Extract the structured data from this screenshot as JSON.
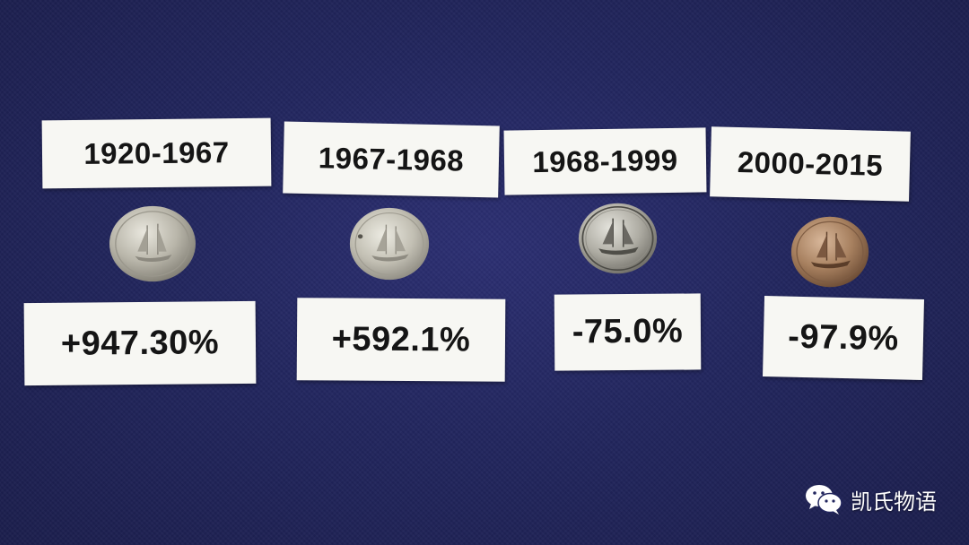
{
  "periods": [
    {
      "years": "1920-1967",
      "change": "+947.30%",
      "coin_tone": "silver"
    },
    {
      "years": "1967-1968",
      "change": "+592.1%",
      "coin_tone": "silver"
    },
    {
      "years": "1968-1999",
      "change": "-75.0%",
      "coin_tone": "nickel"
    },
    {
      "years": "2000-2015",
      "change": "-97.9%",
      "coin_tone": "copper"
    }
  ],
  "watermark": {
    "text": "凯氏物语",
    "icon": "wechat-icon"
  },
  "colors": {
    "background": "#22265e",
    "card": "#f7f7f3",
    "text": "#151515"
  }
}
